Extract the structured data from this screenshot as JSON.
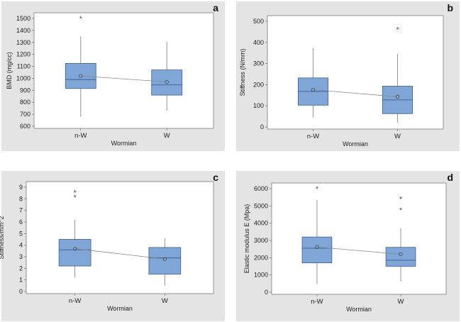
{
  "chart_data": [
    {
      "id": "a",
      "type": "box",
      "panel_label": "a",
      "xlabel": "Wormian",
      "ylabel": "BMD (mg/cc)",
      "ylim": [
        600,
        1500
      ],
      "yticks": [
        600,
        700,
        800,
        900,
        1000,
        1100,
        1200,
        1300,
        1400,
        1500
      ],
      "categories": [
        "n-W",
        "W"
      ],
      "boxes": [
        {
          "category": "n-W",
          "min": 680,
          "q1": 915,
          "median": 990,
          "q3": 1125,
          "max": 1350,
          "mean": 1020,
          "outliers": [
            1505
          ]
        },
        {
          "category": "W",
          "min": 730,
          "q1": 860,
          "median": 945,
          "q3": 1070,
          "max": 1305,
          "mean": 970,
          "outliers": []
        }
      ]
    },
    {
      "id": "b",
      "type": "box",
      "panel_label": "b",
      "xlabel": "Wormian",
      "ylabel": "Stiffness (N/mm)",
      "ylim": [
        0,
        500
      ],
      "yticks": [
        0,
        100,
        200,
        300,
        400,
        500
      ],
      "categories": [
        "n-W",
        "W"
      ],
      "boxes": [
        {
          "category": "n-W",
          "min": 45,
          "q1": 103,
          "median": 168,
          "q3": 232,
          "max": 372,
          "mean": 176,
          "outliers": []
        },
        {
          "category": "W",
          "min": 20,
          "q1": 63,
          "median": 128,
          "q3": 193,
          "max": 347,
          "mean": 143,
          "outliers": [
            465
          ]
        }
      ]
    },
    {
      "id": "c",
      "type": "box",
      "panel_label": "c",
      "xlabel": "Wormian",
      "ylabel": "Stiffness/mm^2",
      "ylim": [
        0,
        9
      ],
      "yticks": [
        0,
        1,
        2,
        3,
        4,
        5,
        6,
        7,
        8,
        9
      ],
      "categories": [
        "n-W",
        "W"
      ],
      "boxes": [
        {
          "category": "n-W",
          "min": 1.2,
          "q1": 2.2,
          "median": 3.6,
          "q3": 4.5,
          "max": 6.2,
          "mean": 3.7,
          "outliers": [
            8.2,
            8.6
          ]
        },
        {
          "category": "W",
          "min": 0.5,
          "q1": 1.5,
          "median": 2.9,
          "q3": 3.8,
          "max": 4.6,
          "mean": 2.8,
          "outliers": []
        }
      ]
    },
    {
      "id": "d",
      "type": "box",
      "panel_label": "d",
      "xlabel": "Wormian",
      "ylabel": "Elastic modulus E (Mpa)",
      "ylim": [
        0,
        6000
      ],
      "yticks": [
        0,
        1000,
        2000,
        3000,
        4000,
        5000,
        6000
      ],
      "categories": [
        "n-W",
        "W"
      ],
      "boxes": [
        {
          "category": "n-W",
          "min": 480,
          "q1": 1700,
          "median": 2550,
          "q3": 3200,
          "max": 5350,
          "mean": 2620,
          "outliers": [
            6050
          ]
        },
        {
          "category": "W",
          "min": 620,
          "q1": 1500,
          "median": 1850,
          "q3": 2600,
          "max": 3700,
          "mean": 2200,
          "outliers": [
            4800,
            5450
          ]
        }
      ]
    }
  ]
}
